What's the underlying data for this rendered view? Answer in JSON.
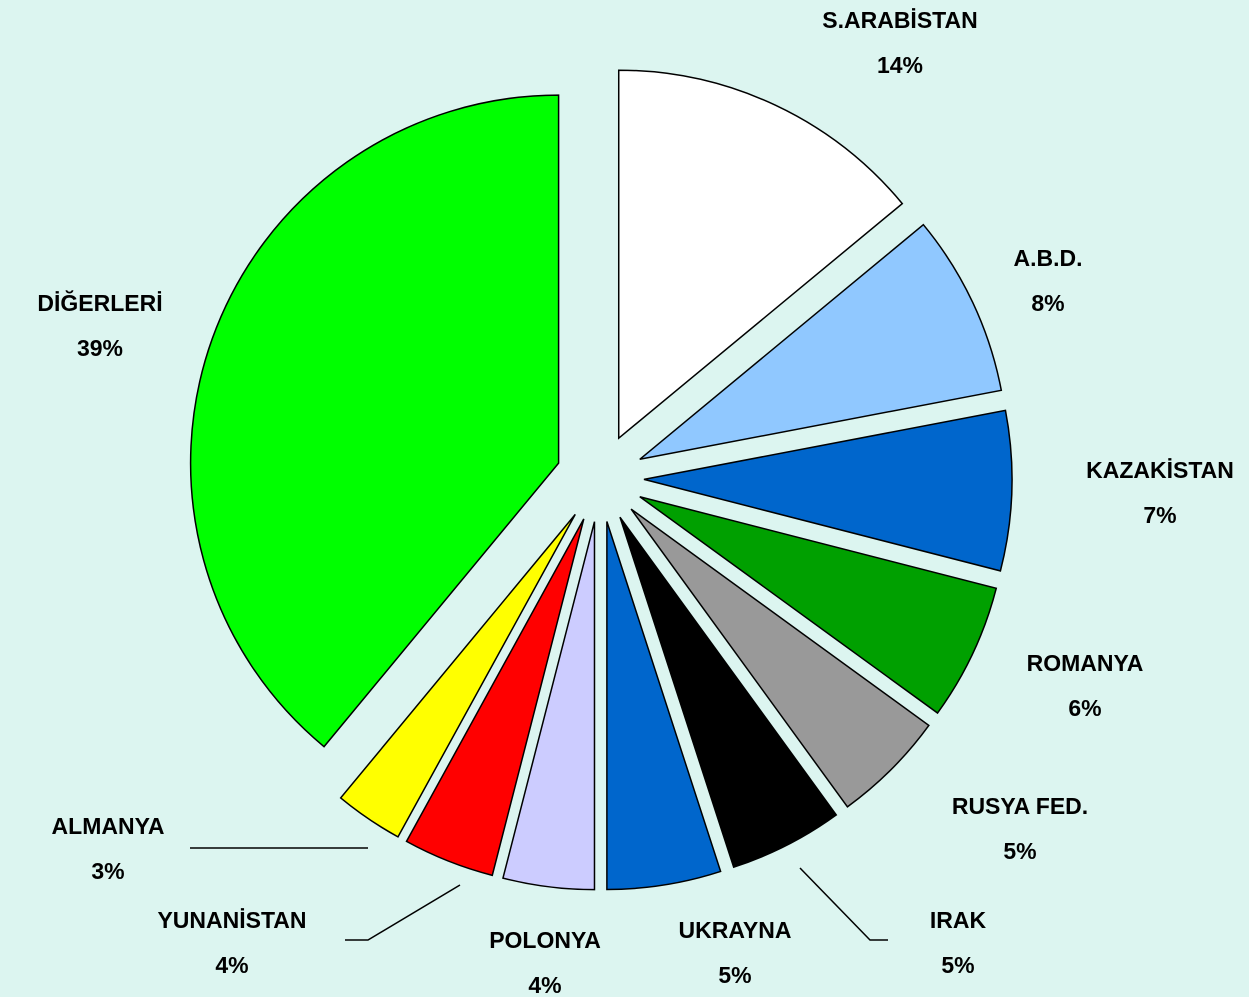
{
  "chart_data": {
    "type": "pie",
    "categories": [
      "S.ARABİSTAN",
      "A.B.D.",
      "KAZAKİSTAN",
      "ROMANYA",
      "RUSYA FED.",
      "IRAK",
      "UKRAYNA",
      "POLONYA",
      "YUNANİSTAN",
      "ALMANYA",
      "DİĞERLERİ"
    ],
    "values": [
      14,
      8,
      7,
      6,
      5,
      5,
      5,
      4,
      4,
      3,
      39
    ],
    "value_labels": [
      "14%",
      "8%",
      "7%",
      "6%",
      "5%",
      "5%",
      "5%",
      "4%",
      "4%",
      "3%",
      "39%"
    ],
    "colors": [
      "#ffffff",
      "#90c8ff",
      "#0066cc",
      "#00a000",
      "#999999",
      "#000000",
      "#0066cc",
      "#ccccff",
      "#ff0000",
      "#ffff00",
      "#00ff00"
    ]
  }
}
